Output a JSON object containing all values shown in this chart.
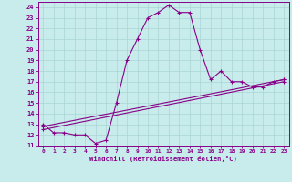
{
  "xlabel": "Windchill (Refroidissement éolien,°C)",
  "xlim": [
    -0.5,
    23.5
  ],
  "ylim": [
    11,
    24.5
  ],
  "yticks": [
    11,
    12,
    13,
    14,
    15,
    16,
    17,
    18,
    19,
    20,
    21,
    22,
    23,
    24
  ],
  "xticks": [
    0,
    1,
    2,
    3,
    4,
    5,
    6,
    7,
    8,
    9,
    10,
    11,
    12,
    13,
    14,
    15,
    16,
    17,
    18,
    19,
    20,
    21,
    22,
    23
  ],
  "bg_color": "#c8ecec",
  "line_color": "#880088",
  "grid_color": "#aad4d4",
  "spine_color": "#880088",
  "series1_x": [
    0,
    1,
    2,
    3,
    4,
    5,
    6,
    7,
    8,
    9,
    10,
    11,
    12,
    13,
    14,
    15,
    16,
    17,
    18,
    19,
    20,
    21,
    22,
    23
  ],
  "series1_y": [
    13.0,
    12.2,
    12.2,
    12.0,
    12.0,
    11.2,
    11.5,
    15.0,
    19.0,
    21.0,
    23.0,
    23.5,
    24.2,
    23.5,
    23.5,
    20.0,
    17.2,
    18.0,
    17.0,
    17.0,
    16.5,
    16.5,
    17.0,
    17.2
  ],
  "series2_x": [
    0,
    23
  ],
  "series2_y": [
    12.8,
    17.2
  ],
  "series3_x": [
    0,
    23
  ],
  "series3_y": [
    12.5,
    17.0
  ]
}
